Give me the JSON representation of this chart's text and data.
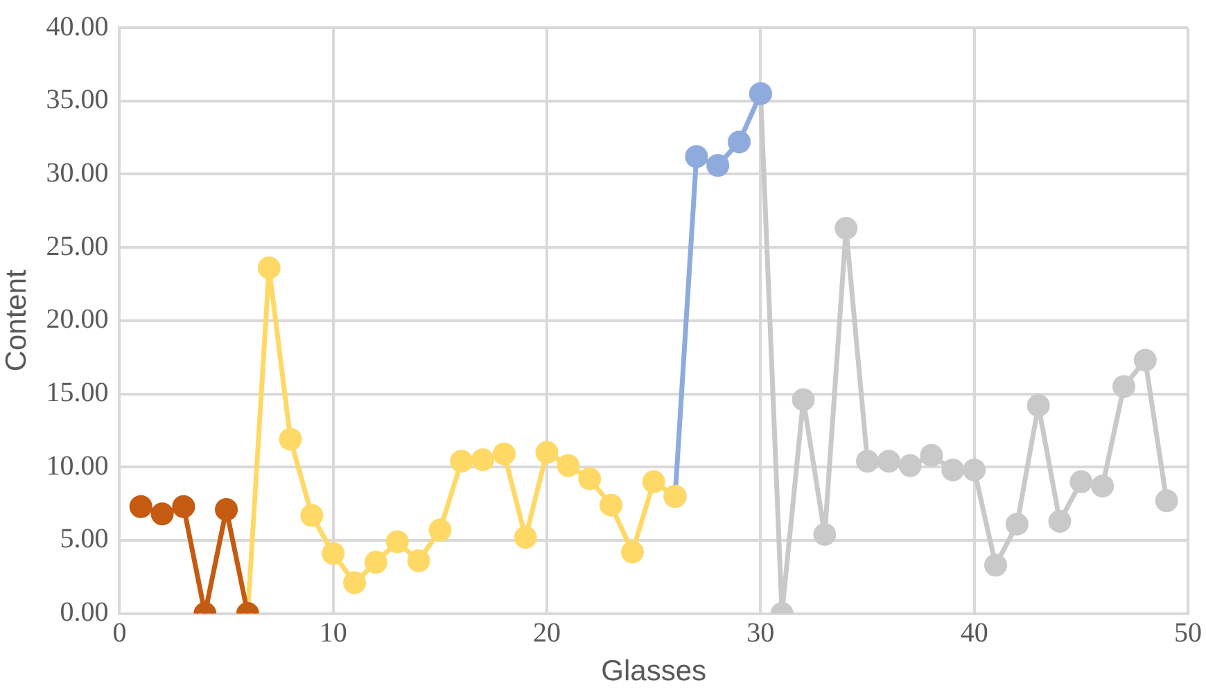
{
  "chart_data": {
    "type": "line",
    "xlabel": "Glasses",
    "ylabel": "Content",
    "xlim": [
      0,
      50
    ],
    "xticks": [
      0,
      10,
      20,
      30,
      40,
      50
    ],
    "ylim": [
      0,
      40
    ],
    "yticks": [
      {
        "value": 0,
        "label": "0.00"
      },
      {
        "value": 5,
        "label": "5.00"
      },
      {
        "value": 10,
        "label": "10.00"
      },
      {
        "value": 15,
        "label": "15.00"
      },
      {
        "value": 20,
        "label": "20.00"
      },
      {
        "value": 25,
        "label": "25.00"
      },
      {
        "value": 30,
        "label": "30.00"
      },
      {
        "value": 35,
        "label": "35.00"
      },
      {
        "value": 40,
        "label": "40.00"
      }
    ],
    "grid": true,
    "legend": false,
    "marker": "circle",
    "line_style": "solid",
    "series": [
      {
        "color": "#c55a11",
        "x": [
          1,
          2,
          3,
          4,
          5,
          6
        ],
        "values": [
          7.3,
          6.8,
          7.3,
          0,
          7.1,
          0
        ]
      },
      {
        "color": "#ffd966",
        "x": [
          6,
          7,
          8,
          9,
          10,
          11,
          12,
          13,
          14,
          15,
          16,
          17,
          18,
          19,
          20,
          21,
          22,
          23,
          24,
          25,
          26
        ],
        "values": [
          0,
          23.6,
          11.9,
          6.7,
          4.1,
          2.1,
          3.5,
          4.9,
          3.6,
          5.7,
          10.4,
          10.5,
          10.9,
          5.2,
          11.0,
          10.1,
          9.2,
          7.4,
          4.2,
          9.0,
          8.0
        ]
      },
      {
        "color": "#8faadc",
        "x": [
          26,
          27,
          28,
          29,
          30
        ],
        "values": [
          8.0,
          31.2,
          30.6,
          32.2,
          35.5
        ]
      },
      {
        "color": "#c9c9c9",
        "x": [
          30,
          31,
          32,
          33,
          34,
          35,
          36,
          37,
          38,
          39,
          40,
          41,
          42,
          43,
          44,
          45,
          46,
          47,
          48,
          49
        ],
        "values": [
          35.5,
          0,
          14.6,
          5.4,
          26.3,
          10.4,
          10.4,
          10.1,
          10.8,
          9.8,
          9.8,
          3.3,
          6.1,
          14.2,
          6.3,
          9.0,
          8.7,
          15.5,
          17.3,
          7.7
        ]
      }
    ]
  }
}
